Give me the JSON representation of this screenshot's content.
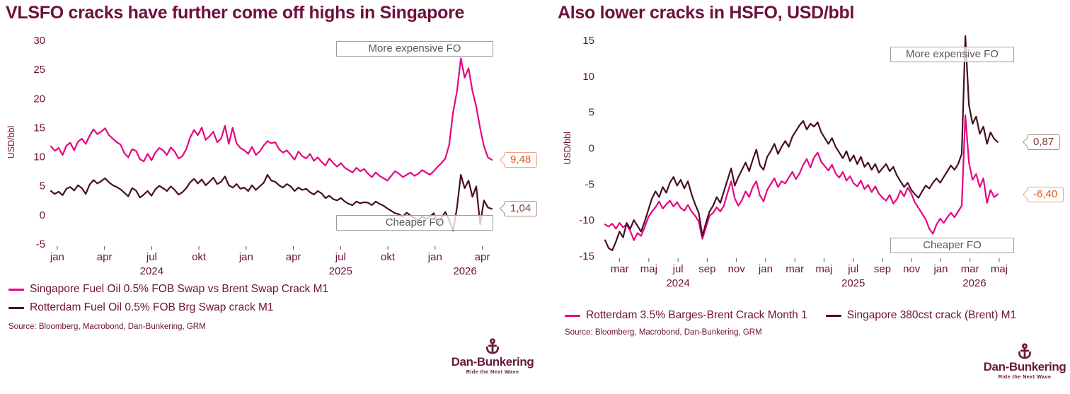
{
  "page": {
    "background": "#ffffff"
  },
  "branding": {
    "name": "Dan-Bunkering",
    "tagline": "Ride the Next Wave",
    "color": "#671a3e"
  },
  "colors": {
    "title_maroon": "#6e103c",
    "pink_series": "#e60480",
    "dark_series": "#470e27",
    "annotation_gray": "#58595b",
    "annotation_border": "#9b9b9b",
    "callout_orange": "#e4571c",
    "callout_orange_border": "#f2a184",
    "callout_brown": "#7c4336",
    "callout_brown_border": "#b3928a"
  },
  "chart_data": [
    {
      "type": "line",
      "title": "VLSFO cracks have further come off highs in Singapore",
      "ylabel": "USD/bbl",
      "y_range": [
        -5,
        30
      ],
      "y_ticks": [
        30,
        25,
        20,
        15,
        10,
        5,
        0,
        -5
      ],
      "x_unit": "months since Jan 2024",
      "x_ticks": [
        {
          "m": 0,
          "label": "jan"
        },
        {
          "m": 3,
          "label": "apr"
        },
        {
          "m": 6,
          "label": "jul"
        },
        {
          "m": 9,
          "label": "okt"
        },
        {
          "m": 12,
          "label": "jan"
        },
        {
          "m": 15,
          "label": "apr"
        },
        {
          "m": 18,
          "label": "jul"
        },
        {
          "m": 21,
          "label": "okt"
        },
        {
          "m": 24,
          "label": "jan"
        },
        {
          "m": 27,
          "label": "apr"
        }
      ],
      "year_labels": [
        {
          "m": 6,
          "label": "2024"
        },
        {
          "m": 18,
          "label": "2025"
        },
        {
          "m": 25.9,
          "label": "2026"
        }
      ],
      "annotations": [
        {
          "text": "More expensive FO",
          "position": "top"
        },
        {
          "text": "Cheaper FO",
          "position": "bottom"
        }
      ],
      "series": [
        {
          "name": "Singapore Fuel Oil 0.5% FOB Swap vs Brent Swap Crack M1",
          "color": "#e60480",
          "callout_style": "orange",
          "last_value_label": "9,48",
          "values": [
            11.8,
            11.0,
            11.5,
            10.3,
            11.9,
            12.4,
            11.1,
            12.6,
            13.1,
            12.2,
            13.6,
            14.7,
            13.9,
            14.3,
            14.9,
            13.7,
            13.1,
            12.5,
            12.1,
            10.6,
            9.9,
            11.3,
            11.0,
            9.6,
            9.2,
            10.5,
            9.4,
            10.7,
            11.5,
            11.1,
            10.3,
            11.6,
            10.9,
            9.7,
            10.1,
            11.3,
            13.3,
            14.6,
            13.7,
            15.0,
            12.9,
            13.5,
            14.3,
            12.5,
            13.1,
            15.3,
            12.2,
            15.0,
            12.3,
            11.5,
            11.1,
            10.5,
            11.7,
            10.3,
            10.9,
            11.9,
            12.7,
            12.3,
            12.5,
            11.3,
            10.7,
            11.1,
            10.3,
            9.5,
            10.9,
            10.1,
            9.7,
            10.5,
            9.3,
            9.9,
            9.1,
            8.5,
            9.7,
            8.9,
            8.3,
            8.9,
            8.1,
            7.7,
            7.3,
            8.1,
            7.5,
            7.9,
            7.1,
            6.5,
            7.3,
            6.7,
            6.3,
            5.9,
            6.7,
            7.5,
            7.1,
            6.5,
            6.9,
            7.3,
            6.7,
            7.1,
            7.7,
            7.3,
            6.9,
            7.5,
            8.3,
            8.9,
            9.7,
            12.1,
            17.6,
            21.2,
            26.9,
            23.6,
            25.2,
            21.3,
            18.6,
            14.9,
            11.8,
            9.9,
            9.48
          ]
        },
        {
          "name": "Rotterdam Fuel Oil 0.5% FOB Brg Swap crack M1",
          "color": "#470e27",
          "callout_style": "brown",
          "last_value_label": "1,04",
          "values": [
            4.1,
            3.6,
            4.0,
            3.4,
            4.5,
            4.8,
            4.2,
            5.1,
            4.6,
            3.6,
            5.2,
            6.0,
            5.4,
            5.8,
            6.3,
            5.6,
            5.1,
            4.8,
            4.4,
            3.8,
            3.2,
            4.6,
            4.2,
            3.0,
            3.5,
            4.1,
            3.3,
            4.4,
            5.0,
            4.6,
            4.1,
            4.9,
            4.3,
            3.5,
            3.9,
            4.6,
            5.6,
            6.2,
            5.4,
            6.1,
            5.1,
            5.7,
            6.4,
            5.3,
            5.7,
            6.6,
            5.1,
            4.7,
            5.3,
            4.5,
            4.7,
            4.1,
            5.1,
            4.3,
            4.9,
            5.5,
            6.9,
            5.9,
            5.7,
            5.1,
            4.7,
            5.3,
            4.9,
            4.1,
            4.7,
            4.3,
            4.5,
            3.9,
            3.5,
            4.1,
            3.7,
            2.9,
            3.3,
            2.7,
            2.5,
            2.9,
            2.3,
            1.9,
            1.7,
            2.3,
            2.0,
            2.2,
            2.1,
            1.7,
            2.3,
            1.9,
            1.6,
            1.1,
            0.7,
            0.3,
            0.1,
            -0.3,
            0.4,
            -0.1,
            -0.5,
            -1.0,
            -0.2,
            -0.7,
            -0.3,
            0.3,
            -1.6,
            -0.5,
            0.5,
            -0.9,
            -2.7,
            1.2,
            6.9,
            4.6,
            5.9,
            3.1,
            4.9,
            -1.6,
            2.5,
            1.3,
            1.04
          ]
        }
      ],
      "source": "Source: Bloomberg, Macrobond, Dan-Bunkering, GRM"
    },
    {
      "type": "line",
      "title": "Also lower cracks in HSFO, USD/bbl",
      "ylabel": "USD/bbl",
      "y_range": [
        -15,
        15
      ],
      "y_ticks": [
        15,
        10,
        5,
        0,
        -5,
        -10,
        -15
      ],
      "x_unit": "months since Mar 2024",
      "x_ticks": [
        {
          "m": 0,
          "label": "mar"
        },
        {
          "m": 2,
          "label": "maj"
        },
        {
          "m": 4,
          "label": "jul"
        },
        {
          "m": 6,
          "label": "sep"
        },
        {
          "m": 8,
          "label": "nov"
        },
        {
          "m": 10,
          "label": "jan"
        },
        {
          "m": 12,
          "label": "mar"
        },
        {
          "m": 14,
          "label": "maj"
        },
        {
          "m": 16,
          "label": "jul"
        },
        {
          "m": 18,
          "label": "sep"
        },
        {
          "m": 20,
          "label": "nov"
        },
        {
          "m": 22,
          "label": "jan"
        },
        {
          "m": 24,
          "label": "mar"
        },
        {
          "m": 26,
          "label": "maj"
        }
      ],
      "year_labels": [
        {
          "m": 4,
          "label": "2024"
        },
        {
          "m": 16,
          "label": "2025"
        },
        {
          "m": 24.3,
          "label": "2026"
        }
      ],
      "annotations": [
        {
          "text": "More expensive FO",
          "position": "top"
        },
        {
          "text": "Cheaper FO",
          "position": "bottom"
        }
      ],
      "series": [
        {
          "name": "Rotterdam 3.5% Barges-Brent Crack Month 1",
          "color": "#e60480",
          "callout_style": "orange",
          "last_value_label": "-6,40",
          "values": [
            -10.6,
            -10.9,
            -10.5,
            -11.2,
            -10.4,
            -11.0,
            -10.6,
            -11.5,
            -12.8,
            -11.8,
            -12.2,
            -11.0,
            -9.6,
            -8.8,
            -8.2,
            -7.4,
            -8.4,
            -7.8,
            -7.3,
            -8.1,
            -7.5,
            -8.3,
            -8.7,
            -7.9,
            -8.8,
            -9.4,
            -10.2,
            -12.6,
            -11.0,
            -9.4,
            -9.0,
            -8.2,
            -8.8,
            -8.0,
            -6.2,
            -4.6,
            -7.0,
            -8.0,
            -7.2,
            -6.0,
            -6.8,
            -5.4,
            -4.6,
            -6.6,
            -7.4,
            -5.8,
            -5.0,
            -4.2,
            -5.4,
            -4.6,
            -4.9,
            -4.1,
            -3.3,
            -4.3,
            -3.5,
            -2.3,
            -1.5,
            -2.7,
            -1.3,
            -0.6,
            -1.9,
            -2.5,
            -3.1,
            -2.3,
            -3.5,
            -4.1,
            -3.3,
            -4.5,
            -3.9,
            -4.9,
            -5.3,
            -4.5,
            -5.7,
            -5.1,
            -6.1,
            -5.3,
            -6.3,
            -6.9,
            -7.3,
            -6.5,
            -7.7,
            -7.1,
            -5.9,
            -6.7,
            -5.5,
            -6.3,
            -7.5,
            -8.3,
            -9.1,
            -9.9,
            -11.2,
            -11.9,
            -10.6,
            -9.8,
            -10.4,
            -9.6,
            -9.0,
            -9.6,
            -8.8,
            -8.0,
            4.6,
            -2.0,
            -4.4,
            -3.6,
            -5.4,
            -4.2,
            -7.6,
            -5.8,
            -6.8,
            -6.4
          ]
        },
        {
          "name": "Singapore 380cst crack (Brent) M1",
          "color": "#470e27",
          "callout_style": "brown",
          "last_value_label": "0,87",
          "values": [
            -12.8,
            -13.9,
            -14.2,
            -13.0,
            -11.6,
            -12.4,
            -10.4,
            -11.2,
            -10.0,
            -10.8,
            -11.6,
            -10.2,
            -8.6,
            -7.0,
            -6.0,
            -6.8,
            -5.4,
            -6.2,
            -4.8,
            -4.0,
            -5.2,
            -4.4,
            -5.6,
            -4.6,
            -6.4,
            -7.8,
            -9.0,
            -12.2,
            -10.4,
            -8.8,
            -8.0,
            -6.8,
            -7.6,
            -6.0,
            -4.4,
            -2.8,
            -5.2,
            -4.0,
            -3.0,
            -2.0,
            -3.2,
            -1.6,
            -0.2,
            -2.4,
            -3.0,
            -1.2,
            -0.4,
            0.6,
            -0.8,
            0.2,
            1.0,
            0.2,
            1.6,
            2.4,
            3.2,
            3.8,
            2.6,
            3.4,
            3.0,
            3.6,
            2.2,
            1.4,
            0.6,
            1.4,
            0.2,
            -0.6,
            -1.4,
            -0.4,
            -1.8,
            -1.0,
            -2.2,
            -1.2,
            -2.6,
            -2.0,
            -3.0,
            -2.2,
            -3.4,
            -2.8,
            -2.2,
            -3.2,
            -2.6,
            -3.8,
            -4.6,
            -5.4,
            -4.8,
            -5.8,
            -6.4,
            -6.9,
            -6.0,
            -5.2,
            -5.6,
            -4.8,
            -4.2,
            -4.8,
            -4.0,
            -3.2,
            -2.4,
            -3.0,
            -2.2,
            -0.8,
            15.6,
            6.0,
            3.4,
            4.4,
            2.0,
            3.0,
            0.6,
            2.2,
            1.3,
            0.87
          ]
        }
      ],
      "source": "Source: Bloomberg, Macrobond, Dan-Bunkering, GRM"
    }
  ]
}
